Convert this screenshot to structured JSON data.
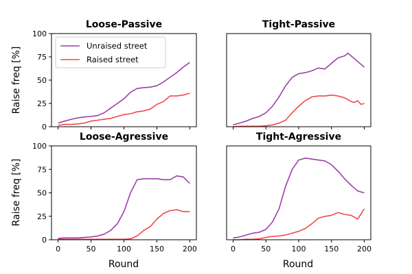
{
  "figure": {
    "ylabel": "Raise freq [%]",
    "xlabel": "Round"
  },
  "legend": {
    "placement": "upper-left of first panel",
    "entries": [
      "Unraised street",
      "Raised street"
    ]
  },
  "colors": {
    "unraised": "#9b3fa8",
    "raised": "#f04848"
  },
  "chart_data": [
    {
      "type": "line",
      "title": "Loose-Passive",
      "xlim": [
        0,
        200
      ],
      "ylim": [
        0,
        100
      ],
      "xticks": [
        0,
        50,
        100,
        150,
        200
      ],
      "yticks": [
        0,
        25,
        50,
        75,
        100
      ],
      "series": [
        {
          "name": "Unraised street",
          "x": [
            0,
            10,
            20,
            30,
            40,
            50,
            60,
            70,
            80,
            90,
            100,
            110,
            120,
            130,
            140,
            150,
            160,
            170,
            180,
            190,
            200
          ],
          "y": [
            4,
            6,
            8,
            9.5,
            10.5,
            11,
            12,
            15,
            20,
            25,
            30,
            37,
            41,
            42,
            42.5,
            44,
            48,
            53,
            58,
            64,
            69
          ]
        },
        {
          "name": "Raised street",
          "x": [
            0,
            10,
            20,
            30,
            40,
            50,
            60,
            70,
            80,
            90,
            100,
            110,
            120,
            130,
            140,
            150,
            160,
            170,
            180,
            190,
            200
          ],
          "y": [
            1.5,
            2.5,
            2.5,
            3,
            4,
            6,
            7,
            8,
            9,
            11,
            13,
            14,
            16,
            17,
            19,
            24,
            27,
            33,
            33,
            34,
            36
          ]
        }
      ]
    },
    {
      "type": "line",
      "title": "Tight-Passive",
      "xlim": [
        0,
        200
      ],
      "ylim": [
        0,
        100
      ],
      "xticks": [
        0,
        50,
        100,
        150,
        200
      ],
      "yticks": [
        0,
        25,
        50,
        75,
        100
      ],
      "series": [
        {
          "name": "Unraised street",
          "x": [
            0,
            10,
            20,
            30,
            40,
            50,
            60,
            70,
            80,
            90,
            100,
            110,
            120,
            130,
            140,
            150,
            160,
            170,
            175,
            180,
            190,
            200
          ],
          "y": [
            2,
            4,
            6,
            9,
            11,
            15,
            22,
            32,
            44,
            53,
            57,
            58,
            60,
            63,
            62,
            68,
            74,
            76,
            79,
            76,
            70,
            64
          ]
        },
        {
          "name": "Raised street",
          "x": [
            0,
            10,
            20,
            30,
            40,
            50,
            60,
            70,
            80,
            90,
            100,
            110,
            120,
            130,
            140,
            150,
            160,
            170,
            180,
            185,
            190,
            195,
            200
          ],
          "y": [
            0,
            0.5,
            0.5,
            0.5,
            0.5,
            1,
            2,
            4,
            7,
            15,
            22,
            28,
            32,
            33,
            33,
            34,
            33,
            31,
            27,
            26,
            28,
            24,
            25
          ]
        }
      ]
    },
    {
      "type": "line",
      "title": "Loose-Agressive",
      "xlim": [
        0,
        200
      ],
      "ylim": [
        0,
        100
      ],
      "xticks": [
        0,
        50,
        100,
        150,
        200
      ],
      "yticks": [
        0,
        25,
        50,
        75,
        100
      ],
      "series": [
        {
          "name": "Unraised street",
          "x": [
            0,
            10,
            20,
            30,
            40,
            50,
            60,
            70,
            80,
            90,
            100,
            110,
            120,
            130,
            140,
            150,
            160,
            170,
            180,
            190,
            200
          ],
          "y": [
            1.5,
            2,
            2,
            2,
            2.5,
            3,
            4,
            6,
            10,
            17,
            30,
            50,
            64,
            65,
            65,
            65,
            64,
            64,
            68,
            67,
            60
          ]
        },
        {
          "name": "Raised street",
          "x": [
            0,
            10,
            20,
            30,
            40,
            50,
            60,
            70,
            80,
            90,
            100,
            110,
            120,
            130,
            140,
            150,
            160,
            170,
            180,
            190,
            200
          ],
          "y": [
            0.5,
            0.5,
            0.5,
            0.5,
            0.5,
            0.5,
            0.5,
            0.5,
            0.5,
            0.5,
            0.5,
            1,
            4,
            10,
            14,
            22,
            28,
            31,
            32,
            30,
            30
          ]
        }
      ]
    },
    {
      "type": "line",
      "title": "Tight-Agressive",
      "xlim": [
        0,
        200
      ],
      "ylim": [
        0,
        100
      ],
      "xticks": [
        0,
        50,
        100,
        150,
        200
      ],
      "yticks": [
        0,
        25,
        50,
        75,
        100
      ],
      "series": [
        {
          "name": "Unraised street",
          "x": [
            0,
            10,
            20,
            30,
            40,
            50,
            60,
            70,
            80,
            90,
            100,
            110,
            120,
            130,
            140,
            150,
            160,
            170,
            180,
            190,
            200
          ],
          "y": [
            2,
            3,
            5,
            7,
            8,
            11,
            19,
            33,
            57,
            75,
            85,
            87,
            86,
            85,
            84,
            80,
            73,
            65,
            58,
            52,
            50
          ]
        },
        {
          "name": "Raised street",
          "x": [
            0,
            10,
            20,
            30,
            40,
            50,
            60,
            70,
            80,
            90,
            100,
            110,
            120,
            130,
            140,
            150,
            160,
            170,
            180,
            190,
            200
          ],
          "y": [
            0,
            0,
            0.5,
            0.5,
            1,
            2.5,
            3.5,
            4,
            5,
            7,
            9,
            12,
            17,
            23,
            25,
            26,
            29,
            27,
            26,
            22,
            33
          ]
        }
      ]
    }
  ]
}
